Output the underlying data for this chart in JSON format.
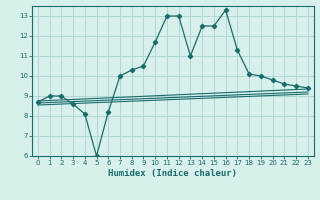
{
  "title": "",
  "xlabel": "Humidex (Indice chaleur)",
  "ylabel": "",
  "background_color": "#d8f0ec",
  "line_color": "#1a6b6b",
  "grid_color": "#b0d8d4",
  "xlim": [
    -0.5,
    23.5
  ],
  "ylim": [
    6,
    13.5
  ],
  "yticks": [
    6,
    7,
    8,
    9,
    10,
    11,
    12,
    13
  ],
  "xticks": [
    0,
    1,
    2,
    3,
    4,
    5,
    6,
    7,
    8,
    9,
    10,
    11,
    12,
    13,
    14,
    15,
    16,
    17,
    18,
    19,
    20,
    21,
    22,
    23
  ],
  "main_line": [
    [
      0,
      8.7
    ],
    [
      1,
      9.0
    ],
    [
      2,
      9.0
    ],
    [
      3,
      8.6
    ],
    [
      4,
      8.1
    ],
    [
      5,
      6.0
    ],
    [
      6,
      8.2
    ],
    [
      7,
      10.0
    ],
    [
      8,
      10.3
    ],
    [
      9,
      10.5
    ],
    [
      10,
      11.7
    ],
    [
      11,
      13.0
    ],
    [
      12,
      13.0
    ],
    [
      13,
      11.0
    ],
    [
      14,
      12.5
    ],
    [
      15,
      12.5
    ],
    [
      16,
      13.3
    ],
    [
      17,
      11.3
    ],
    [
      18,
      10.1
    ],
    [
      19,
      10.0
    ],
    [
      20,
      9.8
    ],
    [
      21,
      9.6
    ],
    [
      22,
      9.5
    ],
    [
      23,
      9.4
    ]
  ],
  "reg_line1": [
    [
      0,
      8.55
    ],
    [
      23,
      9.1
    ]
  ],
  "reg_line2": [
    [
      0,
      8.65
    ],
    [
      23,
      9.2
    ]
  ],
  "reg_line3": [
    [
      0,
      8.75
    ],
    [
      23,
      9.35
    ]
  ]
}
